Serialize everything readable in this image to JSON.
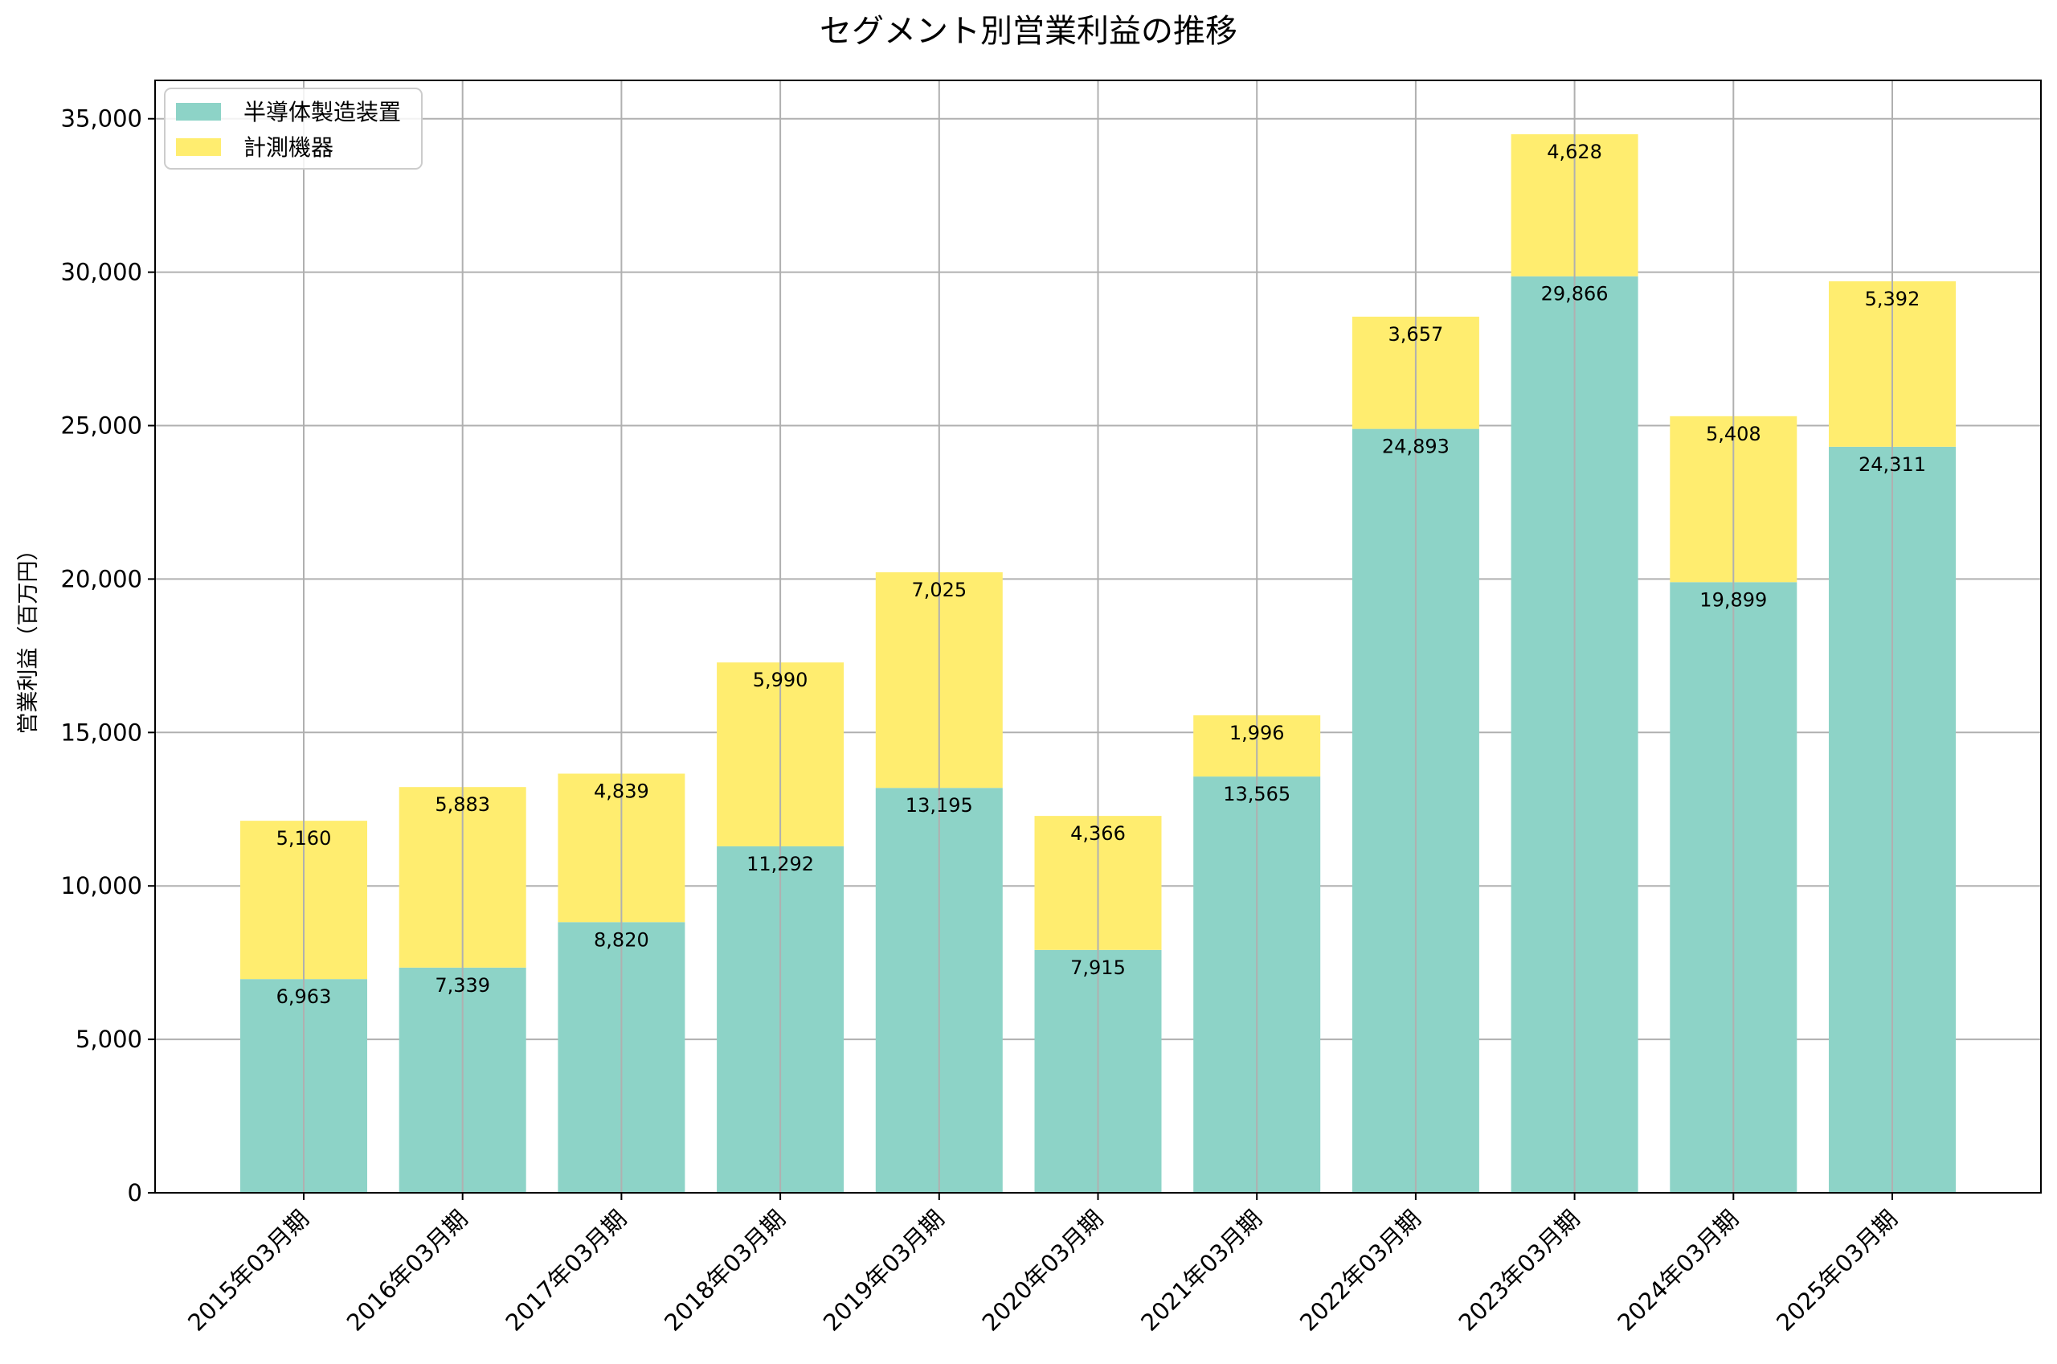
{
  "chart_data": {
    "type": "bar",
    "stacked": true,
    "title": "セグメント別営業利益の推移",
    "xlabel": "",
    "ylabel": "営業利益（百万円）",
    "ylim": [
      0,
      36250
    ],
    "yticks": [
      0,
      5000,
      10000,
      15000,
      20000,
      25000,
      30000,
      35000
    ],
    "ytick_labels": [
      "0",
      "5,000",
      "10,000",
      "15,000",
      "20,000",
      "25,000",
      "30,000",
      "35,000"
    ],
    "grid": true,
    "legend_position": "top-left",
    "categories": [
      "2015年03月期",
      "2016年03月期",
      "2017年03月期",
      "2018年03月期",
      "2019年03月期",
      "2020年03月期",
      "2021年03月期",
      "2022年03月期",
      "2023年03月期",
      "2024年03月期",
      "2025年03月期"
    ],
    "series": [
      {
        "name": "半導体製造装置",
        "color": "#8dd3c7",
        "values": [
          6963,
          7339,
          8820,
          11292,
          13195,
          7915,
          13565,
          24893,
          29866,
          19899,
          24311
        ],
        "labels": [
          "6,963",
          "7,339",
          "8,820",
          "11,292",
          "13,195",
          "7,915",
          "13,565",
          "24,893",
          "29,866",
          "19,899",
          "24,311"
        ]
      },
      {
        "name": "計測機器",
        "color": "#ffed6f",
        "values": [
          5160,
          5883,
          4839,
          5990,
          7025,
          4366,
          1996,
          3657,
          4628,
          5408,
          5392
        ],
        "labels": [
          "5,160",
          "5,883",
          "4,839",
          "5,990",
          "7,025",
          "4,366",
          "1,996",
          "3,657",
          "4,628",
          "5,408",
          "5,392"
        ]
      }
    ]
  }
}
